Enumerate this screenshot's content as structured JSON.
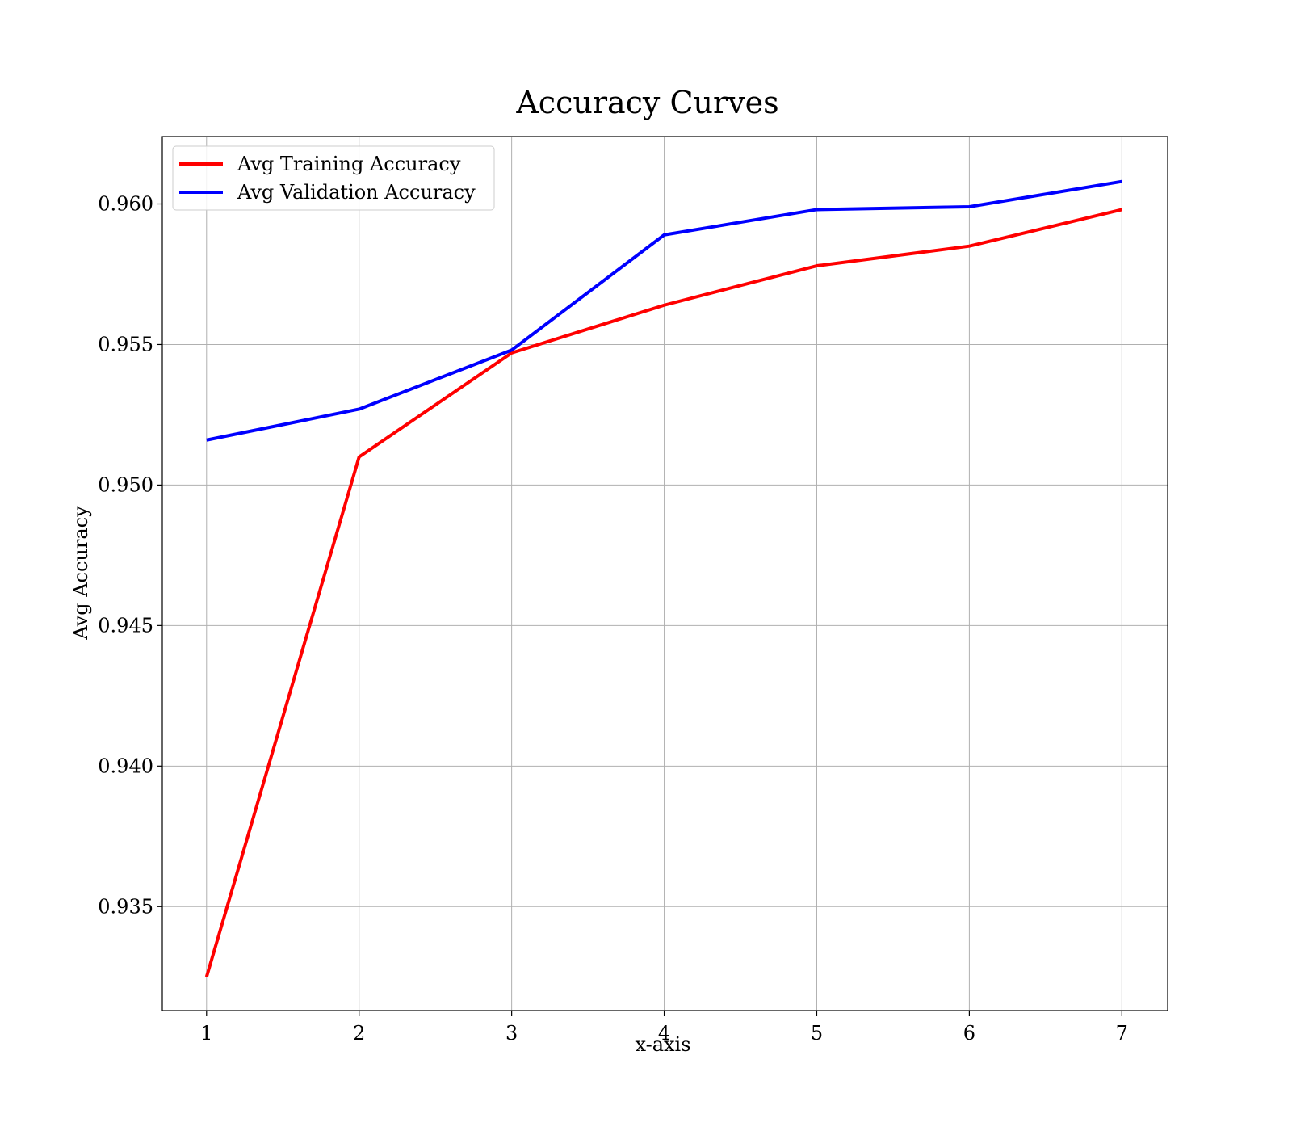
{
  "chart_data": {
    "type": "line",
    "title": "Accuracy Curves",
    "xlabel": "x-axis",
    "ylabel": "Avg Accuracy",
    "x": [
      1,
      2,
      3,
      4,
      5,
      6,
      7
    ],
    "xlim": [
      0.71,
      7.3
    ],
    "ylim": [
      0.9313,
      0.9624
    ],
    "x_ticks": [
      1,
      2,
      3,
      4,
      5,
      6,
      7
    ],
    "y_ticks": [
      0.935,
      0.94,
      0.945,
      0.95,
      0.955,
      0.96
    ],
    "y_tick_labels": [
      "0.935",
      "0.940",
      "0.945",
      "0.950",
      "0.955",
      "0.960"
    ],
    "grid": true,
    "legend_position": "top-left",
    "series": [
      {
        "name": "Avg Training Accuracy",
        "color": "#ff0000",
        "values": [
          0.9325,
          0.951,
          0.9547,
          0.9564,
          0.9578,
          0.9585,
          0.9598
        ]
      },
      {
        "name": "Avg Validation Accuracy",
        "color": "#0000ff",
        "values": [
          0.9516,
          0.9527,
          0.9548,
          0.9589,
          0.9598,
          0.9599,
          0.9608
        ]
      }
    ]
  }
}
